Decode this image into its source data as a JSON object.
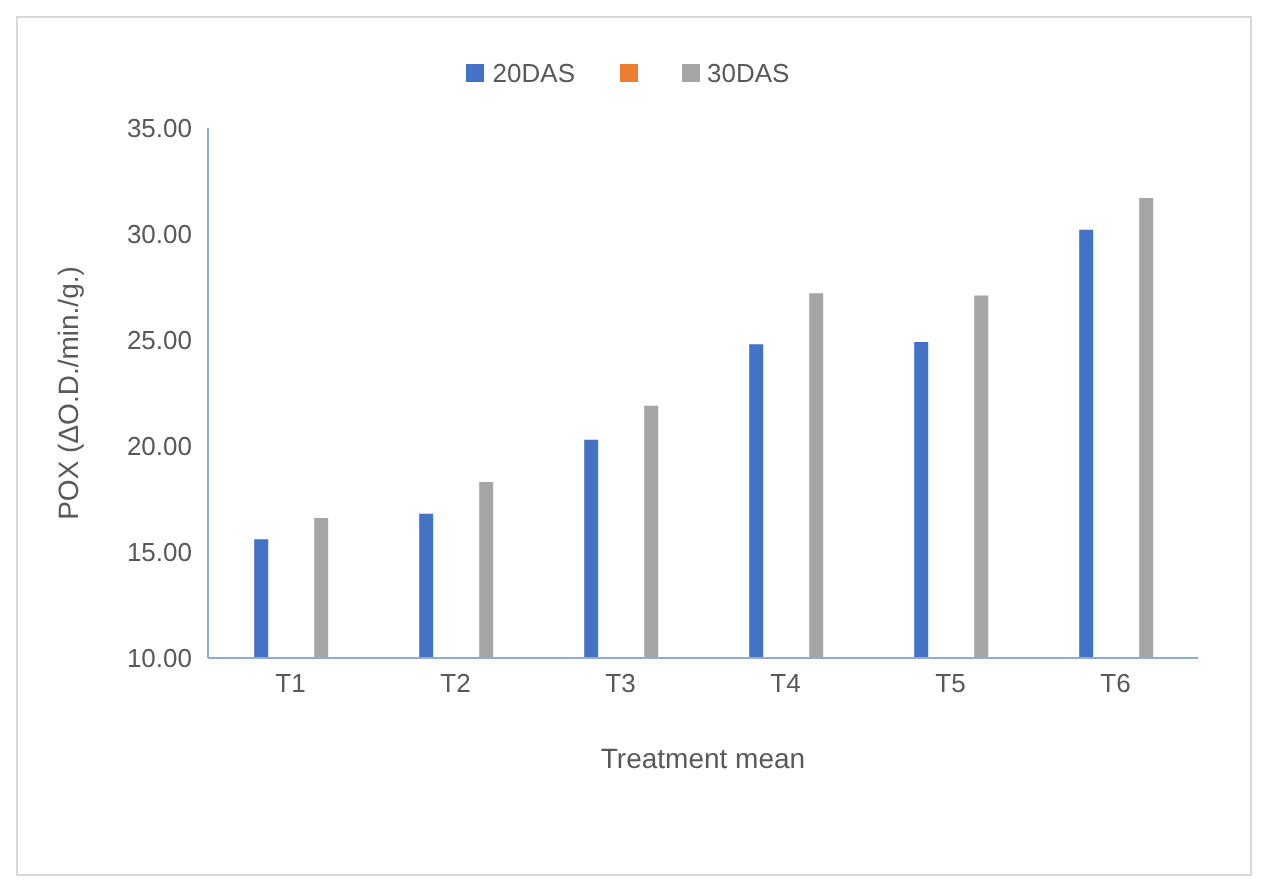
{
  "chart_data": {
    "type": "bar",
    "xlabel": "Treatment mean",
    "ylabel": "POX (ΔO.D./min./g.)",
    "categories": [
      "T1",
      "T2",
      "T3",
      "T4",
      "T5",
      "T6"
    ],
    "series": [
      {
        "name": "20DAS",
        "color": "#4472c4",
        "values": [
          15.6,
          16.8,
          20.3,
          24.8,
          24.9,
          30.2
        ]
      },
      {
        "color": "#ed7d31",
        "values": [
          null,
          null,
          null,
          null,
          null,
          null
        ]
      },
      {
        "name": "30DAS",
        "color": "#a5a5a5",
        "values": [
          16.6,
          18.3,
          21.9,
          27.2,
          27.1,
          31.7
        ]
      }
    ],
    "ylim": [
      10,
      35
    ],
    "yticks": [
      {
        "value": 10,
        "label": "10.00"
      },
      {
        "value": 15,
        "label": "15.00"
      },
      {
        "value": 20,
        "label": "20.00"
      },
      {
        "value": 25,
        "label": "25.00"
      },
      {
        "value": 30,
        "label": "30.00"
      },
      {
        "value": 35,
        "label": "35.00"
      }
    ],
    "grid": false,
    "legend": "top"
  }
}
